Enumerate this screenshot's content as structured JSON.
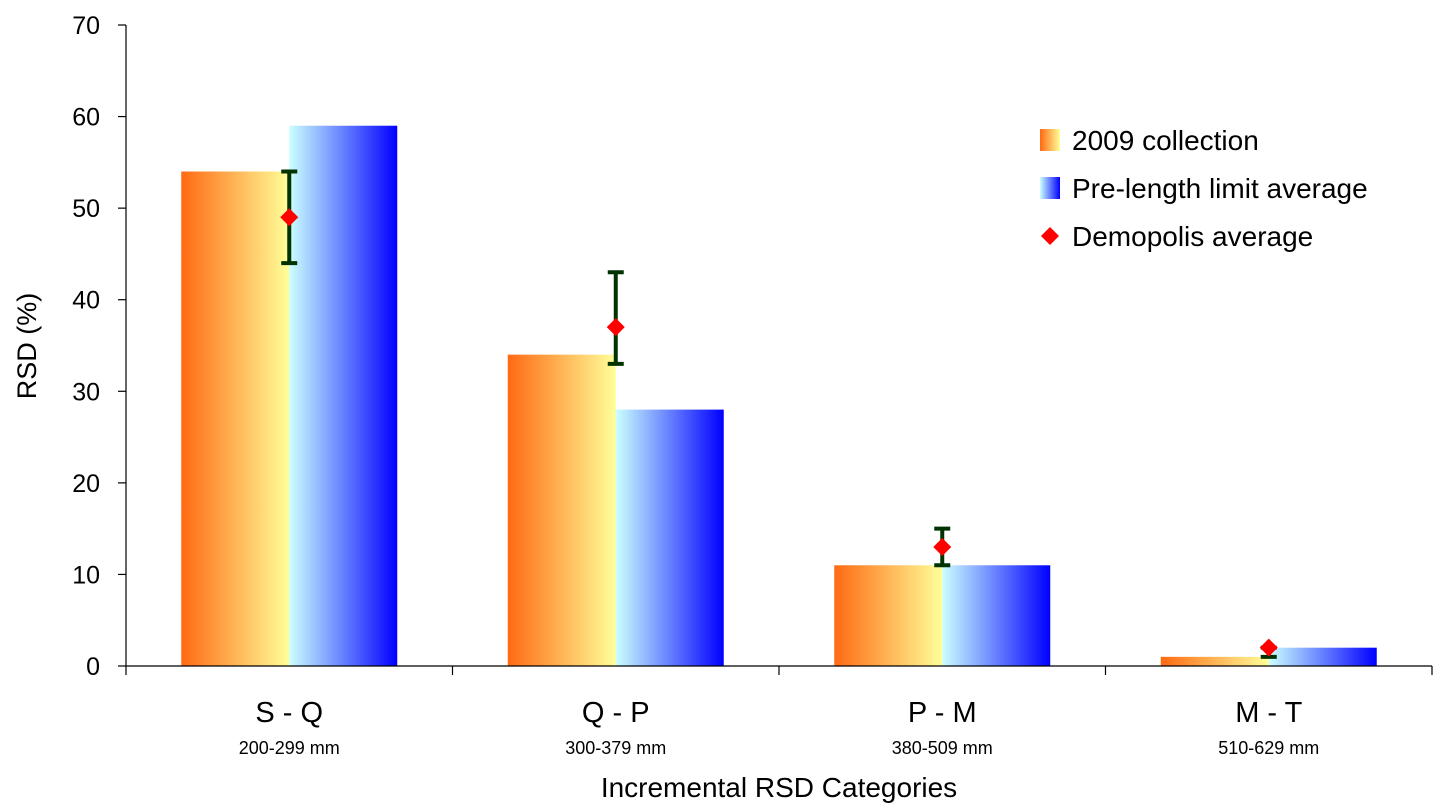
{
  "chart_data": {
    "type": "bar",
    "title": "",
    "xlabel": "Incremental RSD Categories",
    "ylabel": "RSD (%)",
    "ylim": [
      0,
      70
    ],
    "yticks": [
      0,
      10,
      20,
      30,
      40,
      50,
      60,
      70
    ],
    "grid": false,
    "legend_position": "top-right",
    "categories": [
      {
        "label": "S - Q",
        "sublabel": "200-299 mm"
      },
      {
        "label": "Q - P",
        "sublabel": "300-379 mm"
      },
      {
        "label": "P - M",
        "sublabel": "380-509 mm"
      },
      {
        "label": "M - T",
        "sublabel": "510-629 mm"
      }
    ],
    "series": [
      {
        "name": "2009 collection",
        "kind": "bar",
        "values": [
          54,
          34,
          11,
          1
        ],
        "gradient": [
          "#ff6a13",
          "#ffff99"
        ]
      },
      {
        "name": "Pre-length limit average",
        "kind": "bar",
        "values": [
          59,
          28,
          11,
          2
        ],
        "gradient": [
          "#ccffff",
          "#0000ff"
        ]
      },
      {
        "name": "Demopolis average",
        "kind": "marker",
        "values": [
          49,
          37,
          13,
          2
        ],
        "error_low": [
          44,
          33,
          11,
          1
        ],
        "error_high": [
          54,
          43,
          15,
          2
        ],
        "color": "#ff0000",
        "error_color": "#003300"
      }
    ]
  }
}
